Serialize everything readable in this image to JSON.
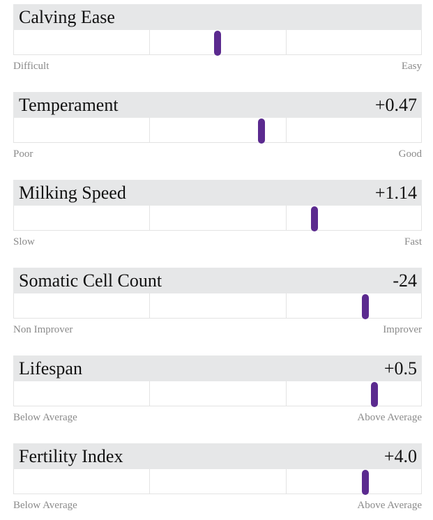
{
  "traits": [
    {
      "name": "Calving Ease",
      "low": "Difficult",
      "high": "Easy"
    },
    {
      "name": "Temperament",
      "value": "+0.47",
      "low": "Poor",
      "high": "Good"
    },
    {
      "name": "Milking Speed",
      "value": "+1.14",
      "low": "Slow",
      "high": "Fast"
    },
    {
      "name": "Somatic Cell Count",
      "value": "-24",
      "low": "Non Improver",
      "high": "Improver"
    },
    {
      "name": "Lifespan",
      "value": "+0.5",
      "low": "Below Average",
      "high": "Above Average"
    },
    {
      "name": "Fertility Index",
      "value": "+4.0",
      "low": "Below Average",
      "high": "Above Average"
    }
  ]
}
